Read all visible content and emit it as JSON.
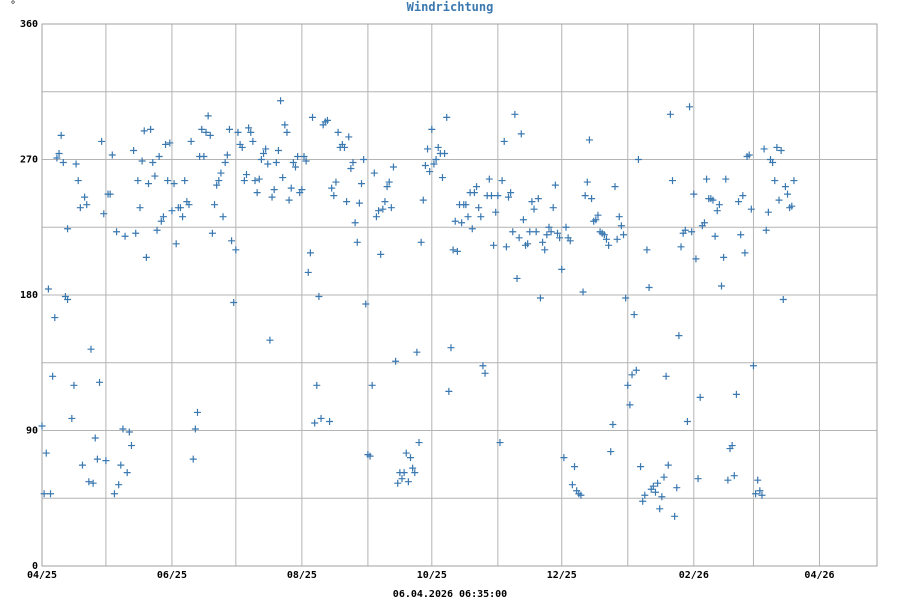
{
  "chart_data": {
    "type": "scatter",
    "title": "Windrichtung",
    "y_unit": "°",
    "timestamp": "06.04.2026 06:35:00",
    "ylim": [
      0,
      360
    ],
    "y_ticks": [
      0,
      90,
      180,
      270,
      360
    ],
    "y_gridlines": [
      0,
      45,
      90,
      135,
      180,
      225,
      270,
      315,
      360
    ],
    "x_ticks": [
      {
        "label": "04/25",
        "pos": 0
      },
      {
        "label": "06/25",
        "pos": 61
      },
      {
        "label": "08/25",
        "pos": 122
      },
      {
        "label": "10/25",
        "pos": 183
      },
      {
        "label": "12/25",
        "pos": 244
      },
      {
        "label": "02/26",
        "pos": 306
      },
      {
        "label": "04/26",
        "pos": 365
      }
    ],
    "x_gridlines": [
      0,
      30,
      61,
      91,
      122,
      153,
      183,
      214,
      244,
      275,
      306,
      334,
      365
    ],
    "xlim": [
      0,
      392
    ],
    "grid": true,
    "marker_color": "#3a78b0",
    "points": [
      [
        0,
        93
      ],
      [
        1,
        48
      ],
      [
        2,
        75
      ],
      [
        3,
        184
      ],
      [
        4,
        48
      ],
      [
        5,
        126
      ],
      [
        6,
        165
      ],
      [
        7,
        271
      ],
      [
        8,
        274
      ],
      [
        9,
        286
      ],
      [
        10,
        268
      ],
      [
        11,
        179
      ],
      [
        12,
        224
      ],
      [
        12,
        177
      ],
      [
        14,
        98
      ],
      [
        15,
        120
      ],
      [
        16,
        267
      ],
      [
        17,
        256
      ],
      [
        18,
        238
      ],
      [
        19,
        67
      ],
      [
        20,
        245
      ],
      [
        21,
        240
      ],
      [
        22,
        56
      ],
      [
        23,
        144
      ],
      [
        24,
        55
      ],
      [
        25,
        85
      ],
      [
        26,
        71
      ],
      [
        27,
        122
      ],
      [
        28,
        282
      ],
      [
        29,
        234
      ],
      [
        30,
        70
      ],
      [
        31,
        247
      ],
      [
        32,
        247
      ],
      [
        33,
        273
      ],
      [
        34,
        48
      ],
      [
        35,
        222
      ],
      [
        36,
        54
      ],
      [
        37,
        67
      ],
      [
        38,
        91
      ],
      [
        39,
        219
      ],
      [
        40,
        62
      ],
      [
        41,
        89
      ],
      [
        42,
        80
      ],
      [
        43,
        276
      ],
      [
        44,
        221
      ],
      [
        45,
        256
      ],
      [
        46,
        238
      ],
      [
        47,
        269
      ],
      [
        48,
        289
      ],
      [
        49,
        205
      ],
      [
        50,
        254
      ],
      [
        51,
        290
      ],
      [
        52,
        268
      ],
      [
        53,
        259
      ],
      [
        54,
        223
      ],
      [
        55,
        272
      ],
      [
        56,
        229
      ],
      [
        57,
        232
      ],
      [
        58,
        280
      ],
      [
        59,
        256
      ],
      [
        60,
        281
      ],
      [
        61,
        236
      ],
      [
        62,
        254
      ],
      [
        63,
        214
      ],
      [
        64,
        238
      ],
      [
        65,
        238
      ],
      [
        66,
        232
      ],
      [
        67,
        256
      ],
      [
        68,
        242
      ],
      [
        69,
        240
      ],
      [
        70,
        282
      ],
      [
        71,
        71
      ],
      [
        72,
        91
      ],
      [
        73,
        102
      ],
      [
        74,
        272
      ],
      [
        75,
        290
      ],
      [
        76,
        272
      ],
      [
        77,
        288
      ],
      [
        78,
        299
      ],
      [
        79,
        286
      ],
      [
        80,
        221
      ],
      [
        81,
        240
      ],
      [
        82,
        253
      ],
      [
        83,
        256
      ],
      [
        84,
        261
      ],
      [
        85,
        232
      ],
      [
        86,
        268
      ],
      [
        87,
        273
      ],
      [
        88,
        290
      ],
      [
        89,
        216
      ],
      [
        90,
        175
      ],
      [
        91,
        210
      ],
      [
        92,
        288
      ],
      [
        93,
        280
      ],
      [
        94,
        278
      ],
      [
        95,
        256
      ],
      [
        96,
        260
      ],
      [
        97,
        291
      ],
      [
        98,
        288
      ],
      [
        99,
        282
      ],
      [
        100,
        256
      ],
      [
        101,
        248
      ],
      [
        102,
        257
      ],
      [
        103,
        270
      ],
      [
        104,
        274
      ],
      [
        105,
        277
      ],
      [
        106,
        267
      ],
      [
        107,
        150
      ],
      [
        108,
        245
      ],
      [
        109,
        250
      ],
      [
        110,
        268
      ],
      [
        111,
        276
      ],
      [
        112,
        309
      ],
      [
        113,
        258
      ],
      [
        114,
        293
      ],
      [
        115,
        288
      ],
      [
        116,
        243
      ],
      [
        117,
        251
      ],
      [
        118,
        268
      ],
      [
        119,
        265
      ],
      [
        120,
        272
      ],
      [
        121,
        248
      ],
      [
        122,
        250
      ],
      [
        123,
        272
      ],
      [
        124,
        269
      ],
      [
        125,
        195
      ],
      [
        126,
        208
      ],
      [
        127,
        298
      ],
      [
        128,
        95
      ],
      [
        129,
        120
      ],
      [
        130,
        179
      ],
      [
        131,
        98
      ],
      [
        132,
        293
      ],
      [
        133,
        295
      ],
      [
        134,
        296
      ],
      [
        135,
        96
      ],
      [
        136,
        251
      ],
      [
        137,
        246
      ],
      [
        138,
        255
      ],
      [
        139,
        288
      ],
      [
        140,
        278
      ],
      [
        141,
        280
      ],
      [
        142,
        278
      ],
      [
        143,
        242
      ],
      [
        144,
        285
      ],
      [
        145,
        264
      ],
      [
        146,
        268
      ],
      [
        147,
        228
      ],
      [
        148,
        215
      ],
      [
        149,
        241
      ],
      [
        150,
        254
      ],
      [
        151,
        270
      ],
      [
        152,
        174
      ],
      [
        153,
        74
      ],
      [
        154,
        73
      ],
      [
        155,
        120
      ],
      [
        156,
        261
      ],
      [
        157,
        232
      ],
      [
        158,
        236
      ],
      [
        159,
        207
      ],
      [
        160,
        237
      ],
      [
        161,
        242
      ],
      [
        162,
        252
      ],
      [
        163,
        255
      ],
      [
        164,
        238
      ],
      [
        165,
        265
      ],
      [
        166,
        136
      ],
      [
        167,
        55
      ],
      [
        168,
        62
      ],
      [
        169,
        58
      ],
      [
        170,
        62
      ],
      [
        171,
        75
      ],
      [
        172,
        56
      ],
      [
        173,
        72
      ],
      [
        174,
        65
      ],
      [
        175,
        62
      ],
      [
        176,
        142
      ],
      [
        177,
        82
      ],
      [
        178,
        215
      ],
      [
        179,
        243
      ],
      [
        180,
        266
      ],
      [
        181,
        277
      ],
      [
        182,
        262
      ],
      [
        183,
        290
      ],
      [
        184,
        267
      ],
      [
        185,
        270
      ],
      [
        186,
        278
      ],
      [
        187,
        274
      ],
      [
        188,
        258
      ],
      [
        189,
        274
      ],
      [
        190,
        298
      ],
      [
        191,
        116
      ],
      [
        192,
        145
      ],
      [
        193,
        210
      ],
      [
        194,
        229
      ],
      [
        195,
        209
      ],
      [
        196,
        240
      ],
      [
        197,
        228
      ],
      [
        198,
        240
      ],
      [
        199,
        240
      ],
      [
        200,
        232
      ],
      [
        201,
        248
      ],
      [
        202,
        224
      ],
      [
        203,
        248
      ],
      [
        204,
        252
      ],
      [
        205,
        238
      ],
      [
        206,
        232
      ],
      [
        207,
        133
      ],
      [
        208,
        128
      ],
      [
        209,
        246
      ],
      [
        210,
        257
      ],
      [
        211,
        246
      ],
      [
        212,
        213
      ],
      [
        213,
        235
      ],
      [
        214,
        246
      ],
      [
        215,
        82
      ],
      [
        216,
        256
      ],
      [
        217,
        282
      ],
      [
        218,
        212
      ],
      [
        219,
        245
      ],
      [
        220,
        248
      ],
      [
        221,
        222
      ],
      [
        222,
        300
      ],
      [
        223,
        191
      ],
      [
        224,
        218
      ],
      [
        225,
        287
      ],
      [
        226,
        230
      ],
      [
        227,
        213
      ],
      [
        228,
        214
      ],
      [
        229,
        222
      ],
      [
        230,
        242
      ],
      [
        231,
        237
      ],
      [
        232,
        222
      ],
      [
        233,
        244
      ],
      [
        234,
        178
      ],
      [
        235,
        215
      ],
      [
        236,
        210
      ],
      [
        237,
        220
      ],
      [
        238,
        225
      ],
      [
        239,
        222
      ],
      [
        240,
        238
      ],
      [
        241,
        253
      ],
      [
        242,
        221
      ],
      [
        243,
        218
      ],
      [
        244,
        197
      ],
      [
        245,
        72
      ],
      [
        246,
        225
      ],
      [
        247,
        218
      ],
      [
        248,
        216
      ],
      [
        249,
        54
      ],
      [
        250,
        66
      ],
      [
        251,
        50
      ],
      [
        252,
        48
      ],
      [
        253,
        47
      ],
      [
        254,
        182
      ],
      [
        255,
        246
      ],
      [
        256,
        255
      ],
      [
        257,
        283
      ],
      [
        258,
        244
      ],
      [
        259,
        229
      ],
      [
        260,
        230
      ],
      [
        261,
        233
      ],
      [
        262,
        222
      ],
      [
        263,
        221
      ],
      [
        264,
        220
      ],
      [
        265,
        217
      ],
      [
        266,
        213
      ],
      [
        267,
        76
      ],
      [
        268,
        94
      ],
      [
        269,
        252
      ],
      [
        270,
        217
      ],
      [
        271,
        232
      ],
      [
        272,
        226
      ],
      [
        273,
        220
      ],
      [
        274,
        178
      ],
      [
        275,
        120
      ],
      [
        276,
        107
      ],
      [
        277,
        127
      ],
      [
        278,
        167
      ],
      [
        279,
        130
      ],
      [
        280,
        270
      ],
      [
        281,
        66
      ],
      [
        282,
        43
      ],
      [
        283,
        47
      ],
      [
        284,
        210
      ],
      [
        285,
        185
      ],
      [
        286,
        51
      ],
      [
        287,
        53
      ],
      [
        288,
        49
      ],
      [
        289,
        55
      ],
      [
        290,
        38
      ],
      [
        291,
        46
      ],
      [
        292,
        59
      ],
      [
        293,
        126
      ],
      [
        294,
        67
      ],
      [
        295,
        300
      ],
      [
        296,
        256
      ],
      [
        297,
        33
      ],
      [
        298,
        52
      ],
      [
        299,
        153
      ],
      [
        300,
        212
      ],
      [
        301,
        221
      ],
      [
        302,
        223
      ],
      [
        303,
        96
      ],
      [
        304,
        305
      ],
      [
        305,
        222
      ],
      [
        306,
        247
      ],
      [
        307,
        204
      ],
      [
        308,
        58
      ],
      [
        309,
        112
      ],
      [
        310,
        226
      ],
      [
        311,
        228
      ],
      [
        312,
        257
      ],
      [
        313,
        244
      ],
      [
        314,
        244
      ],
      [
        315,
        243
      ],
      [
        316,
        219
      ],
      [
        317,
        236
      ],
      [
        318,
        240
      ],
      [
        319,
        186
      ],
      [
        320,
        205
      ],
      [
        321,
        257
      ],
      [
        322,
        57
      ],
      [
        323,
        78
      ],
      [
        324,
        80
      ],
      [
        325,
        60
      ],
      [
        326,
        114
      ],
      [
        327,
        242
      ],
      [
        328,
        220
      ],
      [
        329,
        246
      ],
      [
        330,
        208
      ],
      [
        331,
        272
      ],
      [
        332,
        273
      ],
      [
        333,
        237
      ],
      [
        334,
        133
      ],
      [
        335,
        48
      ],
      [
        336,
        57
      ],
      [
        337,
        50
      ],
      [
        338,
        47
      ],
      [
        339,
        277
      ],
      [
        340,
        223
      ],
      [
        341,
        235
      ],
      [
        342,
        270
      ],
      [
        343,
        268
      ],
      [
        344,
        256
      ],
      [
        345,
        278
      ],
      [
        346,
        243
      ],
      [
        347,
        276
      ],
      [
        348,
        177
      ],
      [
        349,
        252
      ],
      [
        350,
        247
      ],
      [
        351,
        238
      ],
      [
        352,
        239
      ],
      [
        353,
        256
      ]
    ]
  }
}
